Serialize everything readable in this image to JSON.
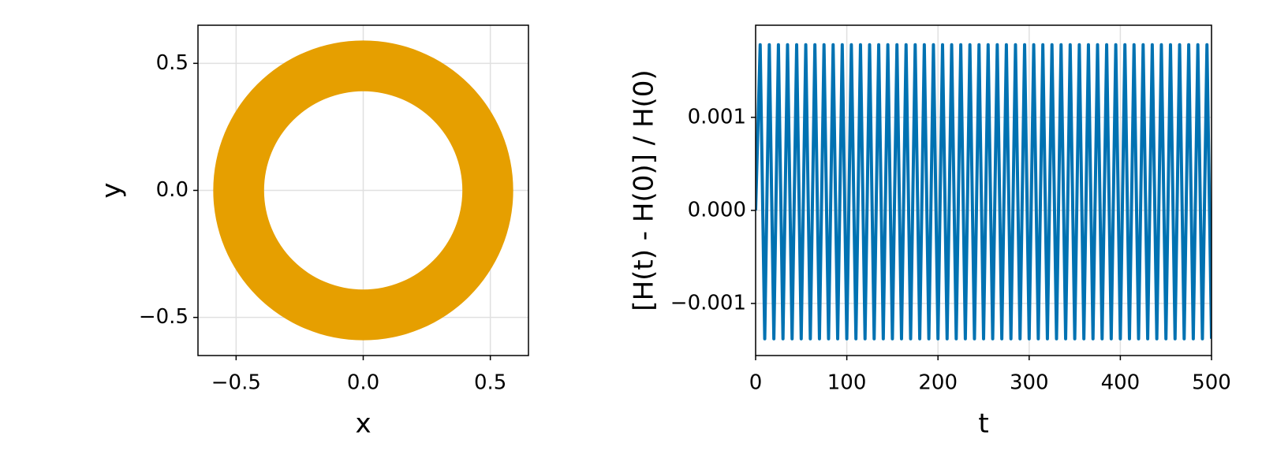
{
  "chart_data": [
    {
      "type": "annulus",
      "xlabel": "x",
      "ylabel": "y",
      "r_inner": 0.39,
      "r_outer": 0.59,
      "color": "#e69f00",
      "xlim": [
        -0.65,
        0.65
      ],
      "ylim": [
        -0.65,
        0.65
      ],
      "xticks": [
        {
          "value": -0.5,
          "label": "−0.5"
        },
        {
          "value": 0,
          "label": "0.0"
        },
        0.5
      ],
      "yticks": [
        {
          "value": -0.5,
          "label": "−0.5"
        },
        {
          "value": 0,
          "label": "0.0"
        },
        0.5
      ],
      "grid": true
    },
    {
      "type": "line",
      "xlabel": "t",
      "ylabel": "[H(t) - H(0)] / H(0)",
      "color": "#0072b2",
      "x": [
        0,
        5,
        10,
        15,
        20,
        25,
        30,
        35,
        40,
        45,
        50,
        55,
        60,
        65,
        70,
        75,
        80,
        85,
        90,
        95,
        100,
        105,
        110,
        115,
        120,
        125,
        130,
        135,
        140,
        145,
        150,
        155,
        160,
        165,
        170,
        175,
        180,
        185,
        190,
        195,
        200,
        205,
        210,
        215,
        220,
        225,
        230,
        235,
        240,
        245,
        250,
        255,
        260,
        265,
        270,
        275,
        280,
        285,
        290,
        295,
        300,
        305,
        310,
        315,
        320,
        325,
        330,
        335,
        340,
        345,
        350,
        355,
        360,
        365,
        370,
        375,
        380,
        385,
        390,
        395,
        400,
        405,
        410,
        415,
        420,
        425,
        430,
        435,
        440,
        445,
        450,
        455,
        460,
        465,
        470,
        475,
        480,
        485,
        490,
        495,
        500
      ],
      "values": [
        0,
        0.00178,
        -0.00138,
        0.00178,
        -0.00138,
        0.00178,
        -0.00138,
        0.00178,
        -0.00138,
        0.00178,
        -0.00138,
        0.00178,
        -0.00138,
        0.00178,
        -0.00138,
        0.00178,
        -0.00138,
        0.00178,
        -0.00138,
        0.00178,
        -0.00138,
        0.00178,
        -0.00138,
        0.00178,
        -0.00138,
        0.00178,
        -0.00138,
        0.00178,
        -0.00138,
        0.00178,
        -0.00138,
        0.00178,
        -0.00138,
        0.00178,
        -0.00138,
        0.00178,
        -0.00138,
        0.00178,
        -0.00138,
        0.00178,
        -0.00138,
        0.00178,
        -0.00138,
        0.00178,
        -0.00138,
        0.00178,
        -0.00138,
        0.00178,
        -0.00138,
        0.00178,
        -0.00138,
        0.00178,
        -0.00138,
        0.00178,
        -0.00138,
        0.00178,
        -0.00138,
        0.00178,
        -0.00138,
        0.00178,
        -0.00138,
        0.00178,
        -0.00138,
        0.00178,
        -0.00138,
        0.00178,
        -0.00138,
        0.00178,
        -0.00138,
        0.00178,
        -0.00138,
        0.00178,
        -0.00138,
        0.00178,
        -0.00138,
        0.00178,
        -0.00138,
        0.00178,
        -0.00138,
        0.00178,
        -0.00138,
        0.00178,
        -0.00138,
        0.00178,
        -0.00138,
        0.00178,
        -0.00138,
        0.00178,
        -0.00138,
        0.00178,
        -0.00138,
        0.00178,
        -0.00138,
        0.00178,
        -0.00138,
        0.00178,
        -0.00138,
        0.00178,
        -0.00138,
        0.00178,
        -0.00138
      ],
      "xlim": [
        0,
        500
      ],
      "ylim": [
        -0.00156,
        0.00199
      ],
      "xticks": [
        0,
        100,
        200,
        300,
        400,
        500
      ],
      "yticks": [
        {
          "value": -0.001,
          "label": "−0.001"
        },
        {
          "value": 0,
          "label": "0.000"
        },
        0.001
      ],
      "grid": true
    }
  ]
}
